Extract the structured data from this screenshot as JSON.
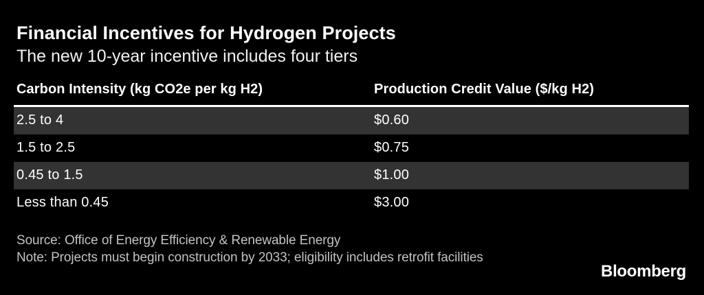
{
  "header": {
    "title": "Financial Incentives for Hydrogen Projects",
    "subtitle": "The new 10-year incentive includes four tiers"
  },
  "table": {
    "columns": [
      "Carbon Intensity (kg CO2e per kg H2)",
      "Production Credit Value ($/kg H2)"
    ],
    "rows": [
      {
        "intensity": "2.5 to 4",
        "credit": "$0.60"
      },
      {
        "intensity": "1.5 to 2.5",
        "credit": "$0.75"
      },
      {
        "intensity": "0.45 to 1.5",
        "credit": "$1.00"
      },
      {
        "intensity": "Less than 0.45",
        "credit": "$3.00"
      }
    ]
  },
  "footer": {
    "source": "Source: Office of Energy Efficiency & Renewable Energy",
    "note": "Note: Projects must begin construction by 2033; eligibility includes retrofit facilities",
    "brand": "Bloomberg"
  },
  "colors": {
    "background": "#000000",
    "row_alt": "#333333",
    "text": "#ffffff",
    "muted_text": "#c3c3c3",
    "rule": "#ffffff"
  },
  "chart_data": {
    "type": "table",
    "title": "Financial Incentives for Hydrogen Projects",
    "subtitle": "The new 10-year incentive includes four tiers",
    "columns": [
      "Carbon Intensity (kg CO2e per kg H2)",
      "Production Credit Value ($/kg H2)"
    ],
    "rows": [
      [
        "2.5 to 4",
        "$0.60"
      ],
      [
        "1.5 to 2.5",
        "$0.75"
      ],
      [
        "0.45 to 1.5",
        "$1.00"
      ],
      [
        "Less than 0.45",
        "$3.00"
      ]
    ],
    "credit_values_numeric_usd_per_kg": [
      0.6,
      0.75,
      1.0,
      3.0
    ],
    "source": "Source: Office of Energy Efficiency & Renewable Energy",
    "note": "Note: Projects must begin construction by 2033; eligibility includes retrofit facilities"
  }
}
